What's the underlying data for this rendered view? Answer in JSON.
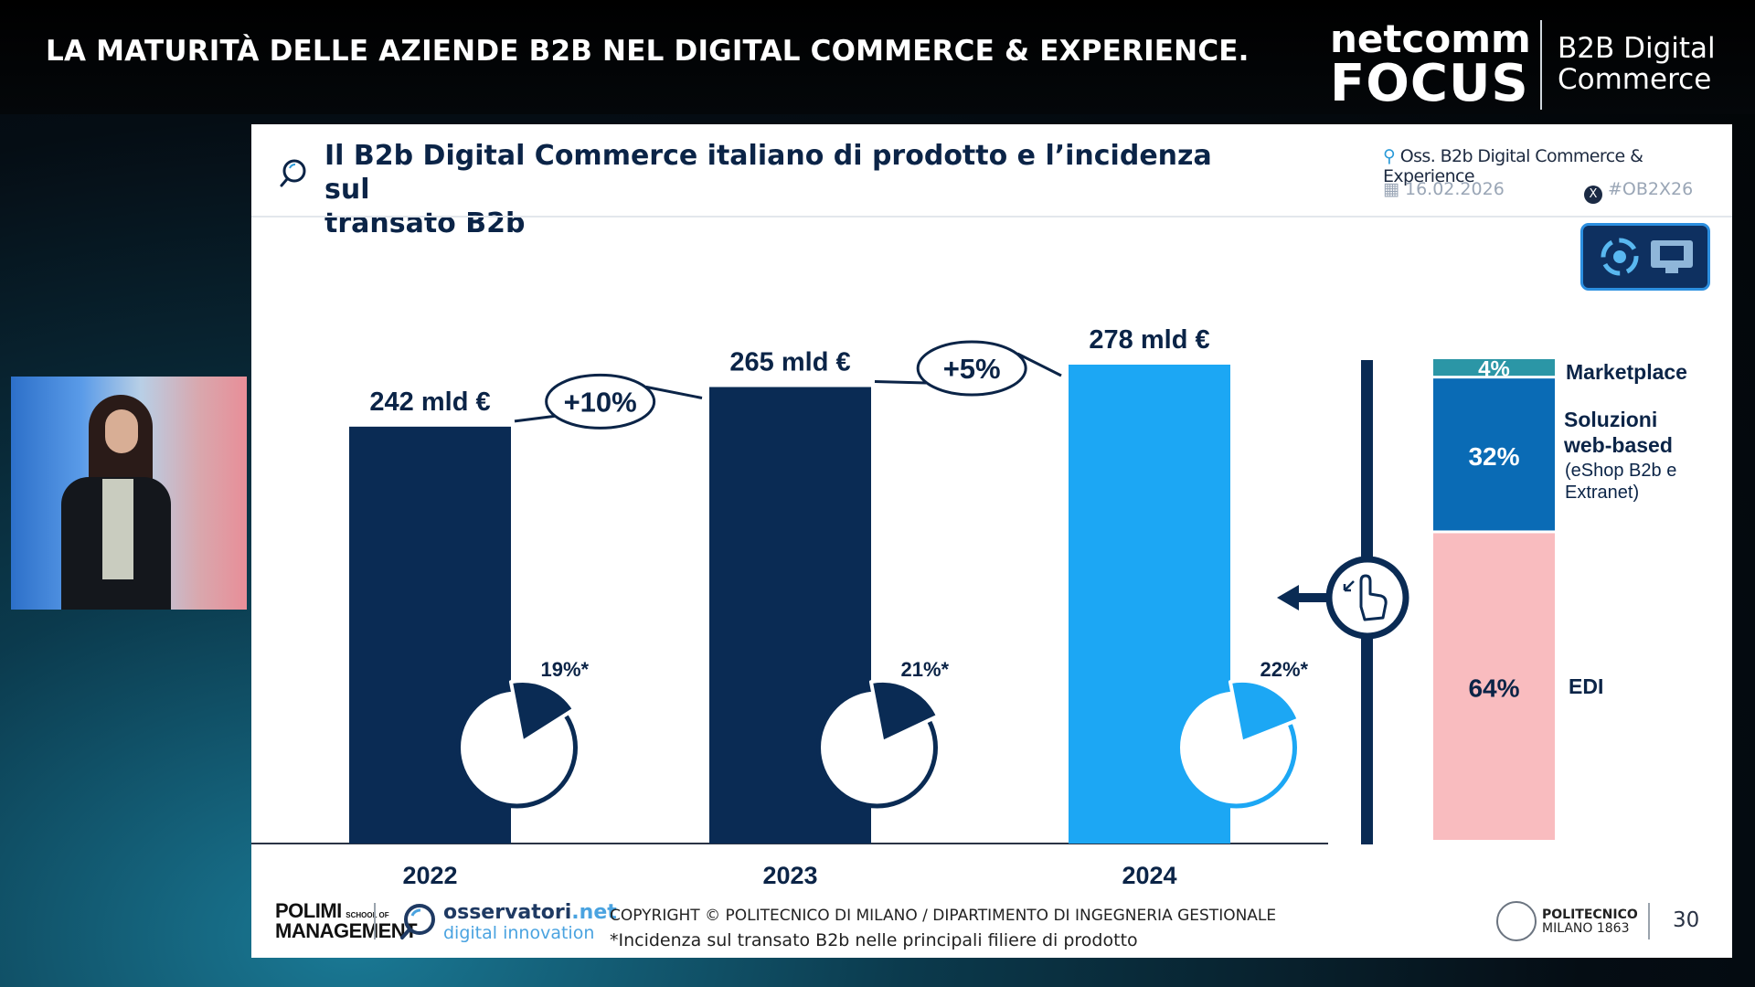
{
  "broadcast": {
    "title": "LA MATURITÀ DELLE AZIENDE B2B NEL DIGITAL COMMERCE & EXPERIENCE.",
    "brand_top": "netcomm",
    "brand_bottom": "FOCUS",
    "brand_line1": "B2B Digital",
    "brand_line2": "Commerce"
  },
  "slide": {
    "title_line1": "Il B2b Digital Commerce italiano di prodotto e l’incidenza sul",
    "title_line2": "transato B2b",
    "observatory": "Oss. B2b Digital Commerce & Experience",
    "date": "16.02.2026",
    "hashtag": "#OB2X26",
    "footer_logo_polimi": "POLIMI",
    "footer_logo_polimi_sub1": "SCHOOL OF",
    "footer_logo_management": "MANAGEMENT",
    "footer_logo_oss": "osservatori",
    "footer_logo_oss_net": ".net",
    "footer_logo_oss_sub": "digital innovation",
    "copyright": "COPYRIGHT © POLITECNICO DI MILANO / DIPARTIMENTO DI INGEGNERIA GESTIONALE",
    "footnote": "*Incidenza sul transato B2b nelle principali filiere di prodotto",
    "polimi_name1": "POLITECNICO",
    "polimi_name2": "MILANO 1863",
    "page_number": "30"
  },
  "colors": {
    "dark_navy": "#0a2b54",
    "light_blue": "#1ca7f4",
    "teal": "#2b96a6",
    "mid_blue": "#0a6bb5",
    "pink": "#f9bcbf"
  },
  "chart_data": [
    {
      "type": "bar",
      "categories": [
        "2022",
        "2023",
        "2024"
      ],
      "values": [
        242,
        265,
        278
      ],
      "unit": "mld €",
      "value_labels": [
        "242 mld €",
        "265 mld €",
        "278 mld €"
      ],
      "growth_labels": [
        "+10%",
        "+5%"
      ],
      "ylim": [
        0,
        278
      ],
      "incidence_pct": [
        19,
        21,
        22
      ],
      "incidence_labels": [
        "19%*",
        "21%*",
        "22%*"
      ],
      "highlight_category": "2024"
    },
    {
      "type": "bar",
      "stacked": true,
      "category": "2024",
      "segments": [
        {
          "name": "Marketplace",
          "label": "4%",
          "value": 4
        },
        {
          "name": "Soluzioni web-based",
          "label": "32%",
          "value": 32,
          "note_line1": "(eShop B2b e",
          "note_line2": "Extranet)"
        },
        {
          "name": "EDI",
          "label": "64%",
          "value": 64
        }
      ]
    }
  ]
}
